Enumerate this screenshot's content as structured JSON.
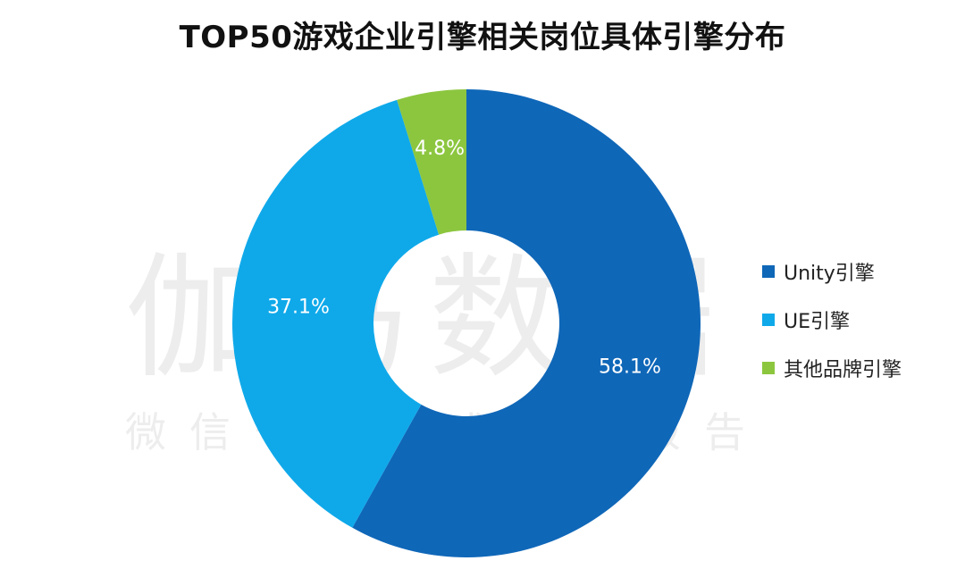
{
  "title": "TOP50游戏企业引擎相关岗位具体引擎分布",
  "watermark": {
    "main": "伽马数据",
    "sub": "微信号：游戏产业报告"
  },
  "chart_data": {
    "type": "pie",
    "title": "TOP50游戏企业引擎相关岗位具体引擎分布",
    "donut": true,
    "legend_position": "right",
    "categories": [
      "Unity引擎",
      "UE引擎",
      "其他品牌引擎"
    ],
    "values": [
      58.1,
      37.1,
      4.8
    ],
    "labels": [
      "58.1%",
      "37.1%",
      "4.8%"
    ],
    "colors": [
      "#0F67B8",
      "#0FA9EA",
      "#8CC63F"
    ]
  }
}
